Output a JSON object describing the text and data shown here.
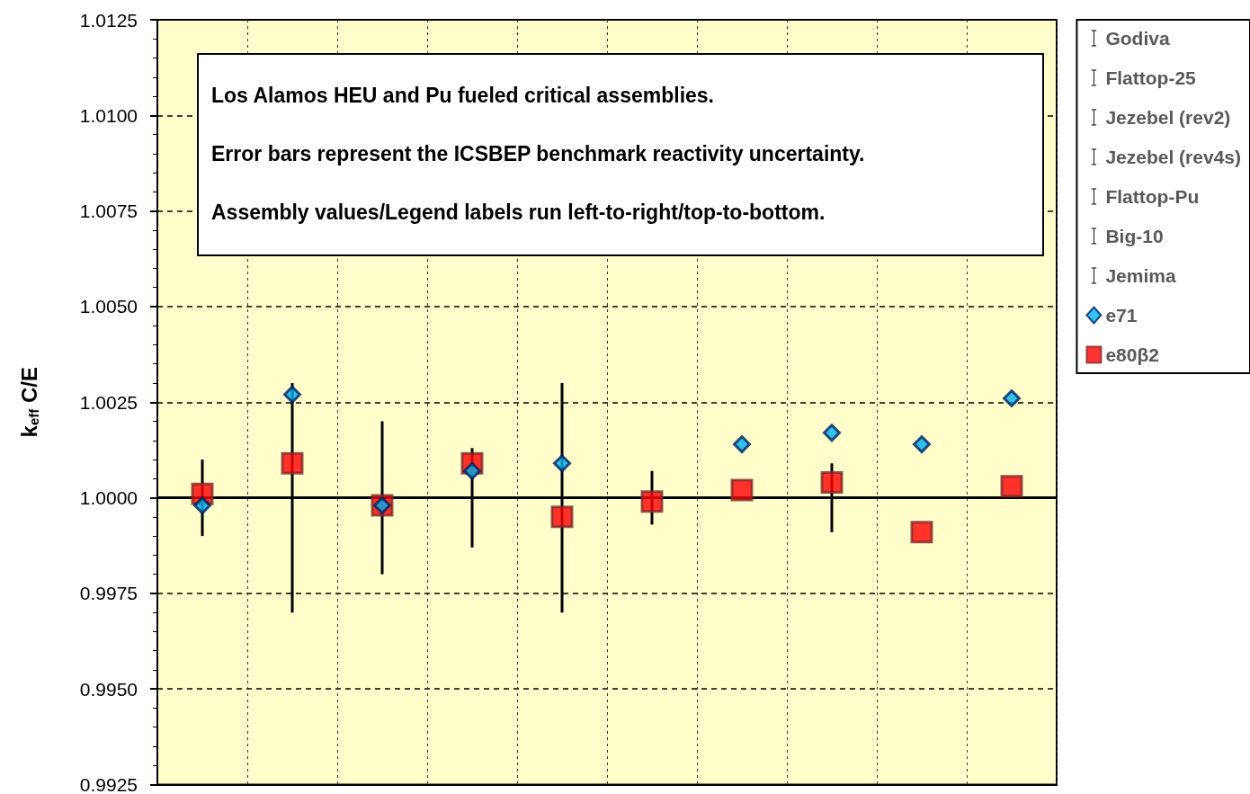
{
  "chart_data": {
    "type": "scatter",
    "ylabel": "k$_{eff}$ C/E",
    "annotations": [
      "Los Alamos HEU and Pu fueled critical assemblies.",
      "Error bars represent the ICSBEP benchmark reactivity uncertainty.",
      "Assembly values/Legend labels run left-to-right/top-to-bottom."
    ],
    "categories": [
      null,
      null,
      null,
      null,
      null,
      null,
      null,
      null,
      null,
      null
    ],
    "ylim": [
      0.9925,
      1.0125
    ],
    "yticks": [
      {
        "value": 0.9925,
        "label": "0.9925"
      },
      {
        "value": 0.995,
        "label": "0.9950"
      },
      {
        "value": 0.9975,
        "label": "0.9975"
      },
      {
        "value": 1,
        "label": "1.0000"
      },
      {
        "value": 1.0025,
        "label": "1.0025"
      },
      {
        "value": 1.005,
        "label": "1.0050"
      },
      {
        "value": 1.0075,
        "label": "1.0075"
      },
      {
        "value": 1.01,
        "label": "1.0100"
      },
      {
        "value": 1.0125,
        "label": "1.0125"
      }
    ],
    "tick_labels": "y",
    "grid": true,
    "legend": "right",
    "ref_lines": [
      {
        "axis": "y",
        "value": 1,
        "color": "#000000"
      }
    ],
    "series": [
      {
        "name": "Godiva",
        "type": "bar",
        "color": "#000000",
        "base": [
          0.999,
          null,
          null,
          null,
          null,
          null,
          null,
          null,
          null,
          null
        ],
        "values": [
          0.002,
          null,
          null,
          null,
          null,
          null,
          null,
          null,
          null,
          null
        ]
      },
      {
        "name": "Flattop-25",
        "type": "bar",
        "color": "#000000",
        "base": [
          null,
          0.997,
          null,
          null,
          null,
          null,
          null,
          null,
          null,
          null
        ],
        "values": [
          null,
          0.006,
          null,
          null,
          null,
          null,
          null,
          null,
          null,
          null
        ]
      },
      {
        "name": "Jezebel (rev2)",
        "type": "bar",
        "color": "#000000",
        "base": [
          null,
          null,
          0.998,
          null,
          null,
          null,
          null,
          null,
          null,
          null
        ],
        "values": [
          null,
          null,
          0.004,
          null,
          null,
          null,
          null,
          null,
          null,
          null
        ]
      },
      {
        "name": "Jezebel (rev4s)",
        "type": "bar",
        "color": "#000000",
        "base": [
          null,
          null,
          null,
          0.9987,
          null,
          null,
          null,
          null,
          null,
          null
        ],
        "values": [
          null,
          null,
          null,
          0.0026,
          null,
          null,
          null,
          null,
          null,
          null
        ]
      },
      {
        "name": "Flattop-Pu",
        "type": "bar",
        "color": "#000000",
        "base": [
          null,
          null,
          null,
          null,
          0.997,
          null,
          null,
          null,
          null,
          null
        ],
        "values": [
          null,
          null,
          null,
          null,
          0.006,
          null,
          null,
          null,
          null,
          null
        ]
      },
      {
        "name": "Big-10",
        "type": "bar",
        "color": "#000000",
        "base": [
          null,
          null,
          null,
          null,
          null,
          0.9993,
          null,
          null,
          null,
          null
        ],
        "values": [
          null,
          null,
          null,
          null,
          null,
          0.0014,
          null,
          null,
          null,
          null
        ]
      },
      {
        "name": "Jemima",
        "type": "bar",
        "color": "#000000",
        "base": [
          null,
          null,
          null,
          null,
          null,
          null,
          null,
          0.9991,
          null,
          null
        ],
        "values": [
          null,
          null,
          null,
          null,
          null,
          null,
          null,
          0.0018,
          null,
          null
        ]
      },
      {
        "name": "e71",
        "color": "#00b0f0",
        "marker": "diamond",
        "values": [
          0.9998,
          1.0027,
          0.9998,
          1.0007,
          1.0009,
          null,
          1.0014,
          1.0017,
          1.0014,
          1.0026
        ]
      },
      {
        "name": "e80β2",
        "color": "#ff0000",
        "marker": "square",
        "values": [
          1.0001,
          1.0009,
          0.9998,
          1.0009,
          0.9995,
          0.9999,
          1.0002,
          1.0004,
          0.9991,
          1.0003
        ]
      }
    ]
  }
}
